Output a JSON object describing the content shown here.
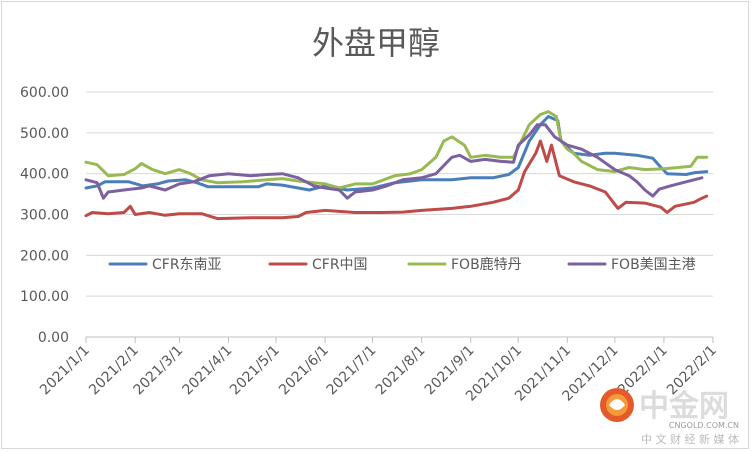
{
  "chart_data": {
    "type": "line",
    "title": "外盘甲醇",
    "ylim": [
      0,
      600
    ],
    "yticks": [
      0,
      100,
      200,
      300,
      400,
      500,
      600
    ],
    "ytick_labels": [
      "0.00",
      "100.00",
      "200.00",
      "300.00",
      "400.00",
      "500.00",
      "600.00"
    ],
    "xlim": [
      "2021-01-01",
      "2022-02-01"
    ],
    "xticks": [
      "2021-01-01",
      "2021-02-01",
      "2021-03-01",
      "2021-04-01",
      "2021-05-01",
      "2021-06-01",
      "2021-07-01",
      "2021-08-01",
      "2021-09-01",
      "2021-10-01",
      "2021-11-01",
      "2021-12-01",
      "2022-01-01",
      "2022-02-01"
    ],
    "xtick_labels": [
      "2021/1/1",
      "2021/2/1",
      "2021/3/1",
      "2021/4/1",
      "2021/5/1",
      "2021/6/1",
      "2021/7/1",
      "2021/8/1",
      "2021/9/1",
      "2021/10/1",
      "2021/11/1",
      "2021/12/1",
      "2022/1/1",
      "2022/2/1"
    ],
    "grid": "horizontal",
    "legend_position": "inside-middle",
    "series": [
      {
        "name": "CFR东南亚",
        "color": "#4a7ebb",
        "points": [
          [
            "2021-01-01",
            365
          ],
          [
            "2021-01-08",
            370
          ],
          [
            "2021-01-13",
            380
          ],
          [
            "2021-01-28",
            380
          ],
          [
            "2021-02-06",
            370
          ],
          [
            "2021-02-15",
            375
          ],
          [
            "2021-02-22",
            382
          ],
          [
            "2021-03-05",
            385
          ],
          [
            "2021-03-12",
            378
          ],
          [
            "2021-03-19",
            368
          ],
          [
            "2021-04-20",
            368
          ],
          [
            "2021-04-25",
            375
          ],
          [
            "2021-05-05",
            372
          ],
          [
            "2021-05-15",
            365
          ],
          [
            "2021-05-22",
            360
          ],
          [
            "2021-06-01",
            370
          ],
          [
            "2021-06-15",
            360
          ],
          [
            "2021-07-01",
            365
          ],
          [
            "2021-07-15",
            378
          ],
          [
            "2021-08-01",
            385
          ],
          [
            "2021-08-20",
            385
          ],
          [
            "2021-09-01",
            390
          ],
          [
            "2021-09-15",
            390
          ],
          [
            "2021-09-25",
            398
          ],
          [
            "2021-10-01",
            415
          ],
          [
            "2021-10-08",
            480
          ],
          [
            "2021-10-15",
            520
          ],
          [
            "2021-10-20",
            540
          ],
          [
            "2021-10-26",
            530
          ],
          [
            "2021-10-28",
            480
          ],
          [
            "2021-11-05",
            450
          ],
          [
            "2021-11-15",
            445
          ],
          [
            "2021-11-25",
            450
          ],
          [
            "2021-12-01",
            450
          ],
          [
            "2021-12-15",
            445
          ],
          [
            "2021-12-25",
            438
          ],
          [
            "2021-12-29",
            420
          ],
          [
            "2022-01-03",
            400
          ],
          [
            "2022-01-15",
            398
          ],
          [
            "2022-01-20",
            402
          ],
          [
            "2022-01-28",
            405
          ]
        ]
      },
      {
        "name": "CFR中国",
        "color": "#be4b48",
        "points": [
          [
            "2021-01-01",
            297
          ],
          [
            "2021-01-05",
            305
          ],
          [
            "2021-01-15",
            302
          ],
          [
            "2021-01-25",
            305
          ],
          [
            "2021-01-29",
            320
          ],
          [
            "2021-02-01",
            300
          ],
          [
            "2021-02-10",
            305
          ],
          [
            "2021-02-20",
            298
          ],
          [
            "2021-03-01",
            302
          ],
          [
            "2021-03-15",
            302
          ],
          [
            "2021-03-25",
            290
          ],
          [
            "2021-04-15",
            292
          ],
          [
            "2021-05-05",
            292
          ],
          [
            "2021-05-15",
            295
          ],
          [
            "2021-05-20",
            305
          ],
          [
            "2021-06-01",
            310
          ],
          [
            "2021-06-20",
            305
          ],
          [
            "2021-07-05",
            305
          ],
          [
            "2021-07-20",
            306
          ],
          [
            "2021-08-01",
            310
          ],
          [
            "2021-08-20",
            315
          ],
          [
            "2021-09-01",
            320
          ],
          [
            "2021-09-15",
            330
          ],
          [
            "2021-09-25",
            340
          ],
          [
            "2021-10-01",
            360
          ],
          [
            "2021-10-05",
            405
          ],
          [
            "2021-10-12",
            450
          ],
          [
            "2021-10-15",
            480
          ],
          [
            "2021-10-19",
            430
          ],
          [
            "2021-10-22",
            470
          ],
          [
            "2021-10-27",
            395
          ],
          [
            "2021-11-05",
            380
          ],
          [
            "2021-11-15",
            370
          ],
          [
            "2021-11-25",
            355
          ],
          [
            "2021-12-01",
            325
          ],
          [
            "2021-12-03",
            315
          ],
          [
            "2021-12-08",
            330
          ],
          [
            "2021-12-20",
            328
          ],
          [
            "2021-12-30",
            318
          ],
          [
            "2022-01-03",
            305
          ],
          [
            "2022-01-08",
            320
          ],
          [
            "2022-01-20",
            330
          ],
          [
            "2022-01-25",
            340
          ],
          [
            "2022-01-28",
            345
          ]
        ]
      },
      {
        "name": "FOB鹿特丹",
        "color": "#98b954",
        "points": [
          [
            "2021-01-01",
            428
          ],
          [
            "2021-01-08",
            422
          ],
          [
            "2021-01-15",
            395
          ],
          [
            "2021-01-25",
            398
          ],
          [
            "2021-02-01",
            412
          ],
          [
            "2021-02-05",
            425
          ],
          [
            "2021-02-12",
            410
          ],
          [
            "2021-02-20",
            400
          ],
          [
            "2021-03-01",
            410
          ],
          [
            "2021-03-08",
            400
          ],
          [
            "2021-03-15",
            385
          ],
          [
            "2021-03-25",
            378
          ],
          [
            "2021-04-10",
            380
          ],
          [
            "2021-04-25",
            385
          ],
          [
            "2021-05-05",
            388
          ],
          [
            "2021-05-15",
            382
          ],
          [
            "2021-05-25",
            378
          ],
          [
            "2021-06-01",
            375
          ],
          [
            "2021-06-10",
            365
          ],
          [
            "2021-06-20",
            375
          ],
          [
            "2021-07-01",
            375
          ],
          [
            "2021-07-15",
            395
          ],
          [
            "2021-07-25",
            400
          ],
          [
            "2021-08-01",
            410
          ],
          [
            "2021-08-10",
            440
          ],
          [
            "2021-08-15",
            480
          ],
          [
            "2021-08-20",
            490
          ],
          [
            "2021-08-28",
            470
          ],
          [
            "2021-09-01",
            440
          ],
          [
            "2021-09-10",
            445
          ],
          [
            "2021-09-20",
            440
          ],
          [
            "2021-09-28",
            440
          ],
          [
            "2021-10-01",
            465
          ],
          [
            "2021-10-08",
            520
          ],
          [
            "2021-10-15",
            545
          ],
          [
            "2021-10-20",
            552
          ],
          [
            "2021-10-25",
            540
          ],
          [
            "2021-10-28",
            480
          ],
          [
            "2021-11-01",
            460
          ],
          [
            "2021-11-05",
            450
          ],
          [
            "2021-11-10",
            430
          ],
          [
            "2021-11-15",
            420
          ],
          [
            "2021-11-20",
            410
          ],
          [
            "2021-12-01",
            405
          ],
          [
            "2021-12-10",
            415
          ],
          [
            "2021-12-20",
            410
          ],
          [
            "2022-01-01",
            412
          ],
          [
            "2022-01-10",
            415
          ],
          [
            "2022-01-18",
            418
          ],
          [
            "2022-01-22",
            440
          ],
          [
            "2022-01-28",
            440
          ]
        ]
      },
      {
        "name": "FOB美国主港",
        "color": "#7d60a0",
        "points": [
          [
            "2021-01-01",
            385
          ],
          [
            "2021-01-08",
            378
          ],
          [
            "2021-01-12",
            340
          ],
          [
            "2021-01-15",
            355
          ],
          [
            "2021-01-25",
            360
          ],
          [
            "2021-02-05",
            365
          ],
          [
            "2021-02-10",
            370
          ],
          [
            "2021-02-20",
            360
          ],
          [
            "2021-03-01",
            375
          ],
          [
            "2021-03-10",
            380
          ],
          [
            "2021-03-20",
            395
          ],
          [
            "2021-04-01",
            400
          ],
          [
            "2021-04-15",
            395
          ],
          [
            "2021-04-25",
            398
          ],
          [
            "2021-05-05",
            400
          ],
          [
            "2021-05-15",
            390
          ],
          [
            "2021-05-25",
            370
          ],
          [
            "2021-06-01",
            365
          ],
          [
            "2021-06-10",
            360
          ],
          [
            "2021-06-15",
            340
          ],
          [
            "2021-06-20",
            355
          ],
          [
            "2021-07-01",
            360
          ],
          [
            "2021-07-10",
            370
          ],
          [
            "2021-07-20",
            385
          ],
          [
            "2021-08-01",
            390
          ],
          [
            "2021-08-10",
            400
          ],
          [
            "2021-08-20",
            440
          ],
          [
            "2021-08-25",
            445
          ],
          [
            "2021-09-01",
            430
          ],
          [
            "2021-09-10",
            435
          ],
          [
            "2021-09-20",
            430
          ],
          [
            "2021-09-28",
            428
          ],
          [
            "2021-10-01",
            470
          ],
          [
            "2021-10-08",
            495
          ],
          [
            "2021-10-13",
            520
          ],
          [
            "2021-10-18",
            520
          ],
          [
            "2021-10-24",
            490
          ],
          [
            "2021-11-01",
            470
          ],
          [
            "2021-11-10",
            460
          ],
          [
            "2021-11-20",
            440
          ],
          [
            "2021-12-01",
            410
          ],
          [
            "2021-12-10",
            395
          ],
          [
            "2021-12-15",
            380
          ],
          [
            "2021-12-20",
            360
          ],
          [
            "2021-12-25",
            345
          ],
          [
            "2021-12-29",
            362
          ],
          [
            "2022-01-05",
            370
          ],
          [
            "2022-01-15",
            380
          ],
          [
            "2022-01-25",
            390
          ]
        ]
      }
    ]
  },
  "watermark": {
    "brand": "中金网",
    "domain": "CNGOLD.COM.CN",
    "slogan": "中 文 财 经 新 媒 体"
  }
}
